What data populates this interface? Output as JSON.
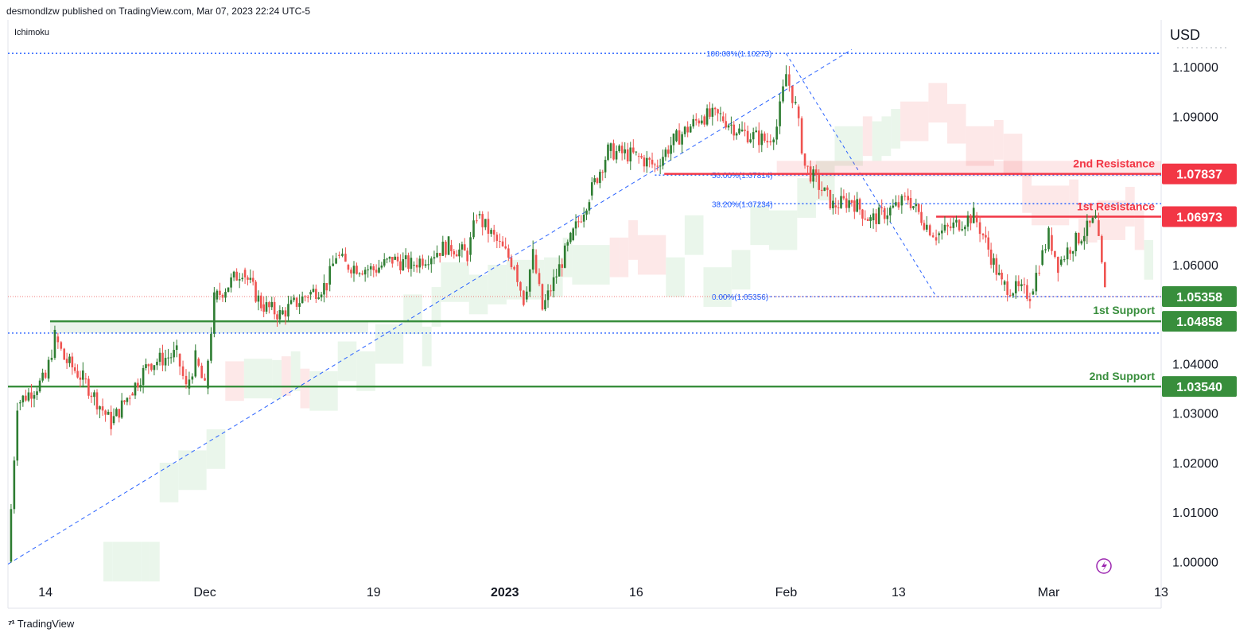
{
  "header": {
    "published_line": "desmondlzw published on TradingView.com, Mar 07, 2023 22:24 UTC-5",
    "indicator": "Ichimoku",
    "currency": "USD"
  },
  "footer": {
    "brand": "TradingView"
  },
  "colors": {
    "up": "#2e7d32",
    "down": "#ef5350",
    "resistance": "#f23645",
    "support": "#388e3c",
    "fib": "#2962ff",
    "cloud_bull": "#e8f5e9",
    "cloud_bear": "#fde5e5",
    "grid": "#e0e3eb"
  },
  "icons": {
    "event_icon": "lightning-icon"
  },
  "chart_data": {
    "type": "candlestick",
    "symbol_currency": "USD",
    "ylim": [
      0.9975,
      1.1095
    ],
    "y_ticks": [
      1.0,
      1.01,
      1.02,
      1.03,
      1.04,
      1.06,
      1.09,
      1.1
    ],
    "y_tick_labels": [
      "1.00000",
      "1.01000",
      "1.02000",
      "1.03000",
      "1.04000",
      "1.06000",
      "1.09000",
      "1.10000"
    ],
    "x_ticks": [
      {
        "label": "14",
        "date": "2022-11-14"
      },
      {
        "label": "Dec",
        "date": "2022-12-01"
      },
      {
        "label": "19",
        "date": "2022-12-19"
      },
      {
        "label": "2023",
        "date": "2023-01-02"
      },
      {
        "label": "16",
        "date": "2023-01-16"
      },
      {
        "label": "Feb",
        "date": "2023-02-01"
      },
      {
        "label": "13",
        "date": "2023-02-13"
      },
      {
        "label": "Mar",
        "date": "2023-03-01"
      },
      {
        "label": "13",
        "date": "2023-03-13"
      }
    ],
    "x_range_dates": [
      "2022-11-10",
      "2023-03-13"
    ],
    "price_path": [
      [
        "2022-11-10",
        1.0
      ],
      [
        "2022-11-11",
        1.032
      ],
      [
        "2022-11-14",
        1.037
      ],
      [
        "2022-11-15",
        1.0455
      ],
      [
        "2022-11-16",
        1.041
      ],
      [
        "2022-11-18",
        1.037
      ],
      [
        "2022-11-21",
        1.028
      ],
      [
        "2022-11-23",
        1.034
      ],
      [
        "2022-11-25",
        1.04
      ],
      [
        "2022-11-28",
        1.042
      ],
      [
        "2022-11-29",
        1.035
      ],
      [
        "2022-11-30",
        1.041
      ],
      [
        "2022-12-01",
        1.035
      ],
      [
        "2022-12-02",
        1.053
      ],
      [
        "2022-12-05",
        1.059
      ],
      [
        "2022-12-07",
        1.052
      ],
      [
        "2022-12-09",
        1.05
      ],
      [
        "2022-12-12",
        1.054
      ],
      [
        "2022-12-14",
        1.056
      ],
      [
        "2022-12-15",
        1.062
      ],
      [
        "2022-12-16",
        1.06
      ],
      [
        "2022-12-19",
        1.059
      ],
      [
        "2022-12-21",
        1.061
      ],
      [
        "2022-12-23",
        1.06
      ],
      [
        "2022-12-27",
        1.064
      ],
      [
        "2022-12-29",
        1.062
      ],
      [
        "2022-12-30",
        1.07
      ],
      [
        "2023-01-03",
        1.06
      ],
      [
        "2023-01-04",
        1.053
      ],
      [
        "2023-01-05",
        1.062
      ],
      [
        "2023-01-06",
        1.051
      ],
      [
        "2023-01-09",
        1.065
      ],
      [
        "2023-01-11",
        1.074
      ],
      [
        "2023-01-13",
        1.083
      ],
      [
        "2023-01-16",
        1.082
      ],
      [
        "2023-01-18",
        1.08
      ],
      [
        "2023-01-20",
        1.085
      ],
      [
        "2023-01-23",
        1.09
      ],
      [
        "2023-01-25",
        1.09
      ],
      [
        "2023-01-27",
        1.087
      ],
      [
        "2023-01-30",
        1.085
      ],
      [
        "2023-01-31",
        1.088
      ],
      [
        "2023-02-01",
        1.0985
      ],
      [
        "2023-02-02",
        1.092
      ],
      [
        "2023-02-03",
        1.08
      ],
      [
        "2023-02-06",
        1.072
      ],
      [
        "2023-02-08",
        1.073
      ],
      [
        "2023-02-10",
        1.069
      ],
      [
        "2023-02-13",
        1.072
      ],
      [
        "2023-02-14",
        1.0735
      ],
      [
        "2023-02-16",
        1.068
      ],
      [
        "2023-02-17",
        1.066
      ],
      [
        "2023-02-21",
        1.07
      ],
      [
        "2023-02-22",
        1.066
      ],
      [
        "2023-02-24",
        1.056
      ],
      [
        "2023-02-27",
        1.054
      ],
      [
        "2023-02-28",
        1.06
      ],
      [
        "2023-03-01",
        1.066
      ],
      [
        "2023-03-02",
        1.06
      ],
      [
        "2023-03-03",
        1.063
      ],
      [
        "2023-03-06",
        1.069
      ],
      [
        "2023-03-07",
        1.0545
      ]
    ],
    "levels": [
      {
        "label": "2nd Resistance",
        "value": "1.07837",
        "price": 1.07837,
        "role": "resistance"
      },
      {
        "label": "1st Resistance",
        "value": "1.06973",
        "price": 1.06973,
        "role": "resistance"
      },
      {
        "label": "1st Support",
        "value": "1.04858",
        "price": 1.04858,
        "role": "support"
      },
      {
        "label": "2nd Support",
        "value": "1.03540",
        "price": 1.0354,
        "role": "support"
      }
    ],
    "current_price": {
      "value": "1.05358",
      "price": 1.05358
    },
    "fibonacci": [
      {
        "label": "100.00%(1.10273)",
        "price": 1.10273
      },
      {
        "label": "50.00%(1.07814)",
        "price": 1.07814
      },
      {
        "label": "38.20%(1.07234)",
        "price": 1.07234
      },
      {
        "label": "0.00%(1.05356)",
        "price": 1.05356
      }
    ],
    "trendline": {
      "from": [
        "2022-11-10",
        0.9995
      ],
      "to": [
        "2023-02-08",
        1.1035
      ]
    },
    "grid": true,
    "legend": "top-left"
  }
}
